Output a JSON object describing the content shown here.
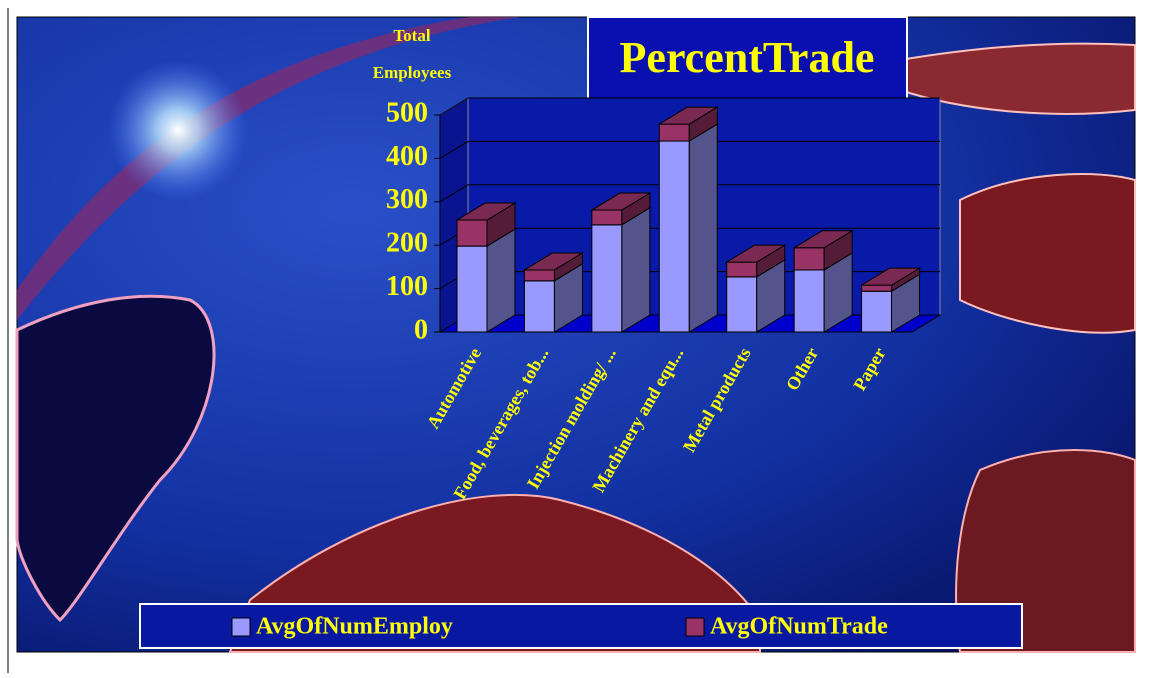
{
  "chart_data": {
    "type": "bar3d_stacked",
    "title": "PercentTrade",
    "ylabel": [
      "Total",
      "Employees"
    ],
    "categories": [
      "Automotive",
      "Food, beverages, tob...",
      "Injection molding/ ...",
      "Machinery and equ...",
      "Metal products",
      "Other",
      "Paper"
    ],
    "series": [
      {
        "name": "AvgOfNumEmploy",
        "color": "#9999ff",
        "values": [
          198,
          118,
          247,
          440,
          127,
          143,
          94
        ]
      },
      {
        "name": "AvgOfNumTrade",
        "color": "#993366",
        "values": [
          60,
          25,
          34,
          39,
          34,
          51,
          14
        ]
      }
    ],
    "ylim": [
      0,
      500
    ],
    "yticks": [
      0,
      100,
      200,
      300,
      400,
      500
    ],
    "grid": true
  }
}
